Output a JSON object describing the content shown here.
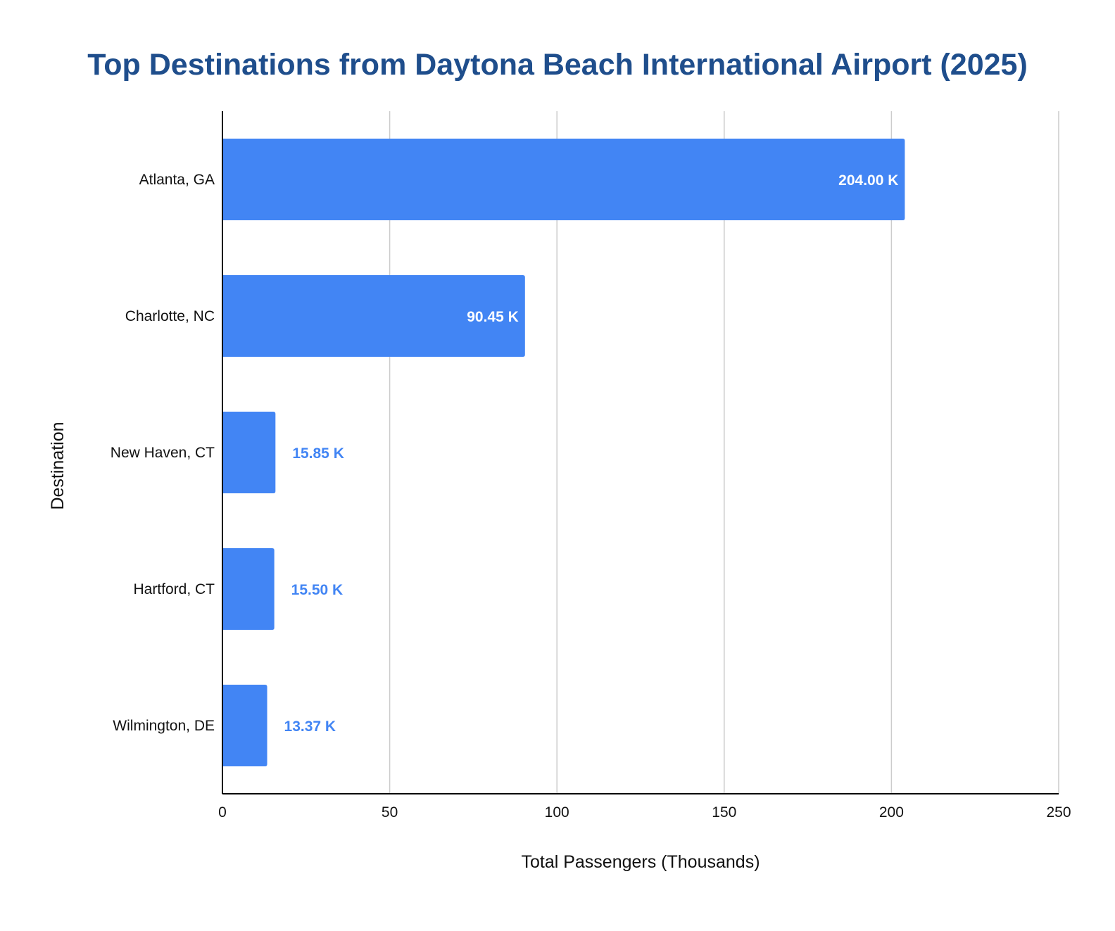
{
  "chart_data": {
    "type": "bar",
    "orientation": "horizontal",
    "title": "Top Destinations from Daytona Beach International Airport (2025)",
    "xlabel": "Total Passengers (Thousands)",
    "ylabel": "Destination",
    "categories": [
      "Atlanta, GA",
      "Charlotte, NC",
      "New Haven, CT",
      "Hartford, CT",
      "Wilmington, DE"
    ],
    "values": [
      204.0,
      90.45,
      15.85,
      15.5,
      13.37
    ],
    "data_labels": [
      "204.00 K",
      "90.45 K",
      "15.85 K",
      "15.50 K",
      "13.37 K"
    ],
    "xlim": [
      0,
      250
    ],
    "xticks": [
      0,
      50,
      100,
      150,
      200,
      250
    ],
    "xtick_labels": [
      "0",
      "50",
      "100",
      "150",
      "200",
      "250"
    ],
    "grid": true,
    "colors": {
      "bar": "#4285f4",
      "title": "#1f4e8c",
      "label_inside": "#ffffff",
      "label_outside": "#4285f4",
      "grid": "#cccccc",
      "axis": "#000000"
    }
  }
}
